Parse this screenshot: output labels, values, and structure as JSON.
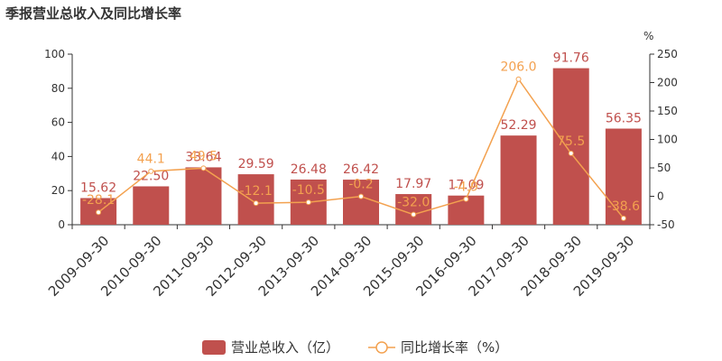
{
  "chart_data": {
    "type": "bar",
    "title": "季报营业总收入及同比增长率",
    "categories": [
      "2009-09-30",
      "2010-09-30",
      "2011-09-30",
      "2012-09-30",
      "2013-09-30",
      "2014-09-30",
      "2015-09-30",
      "2016-09-30",
      "2017-09-30",
      "2018-09-30",
      "2019-09-30"
    ],
    "series": [
      {
        "name": "营业总收入（亿）",
        "type": "bar",
        "axis": "left",
        "values": [
          15.62,
          22.5,
          33.64,
          29.59,
          26.48,
          26.42,
          17.97,
          17.09,
          52.29,
          91.76,
          56.35
        ],
        "labels": [
          "15.62",
          "22.50",
          "33.64",
          "29.59",
          "26.48",
          "26.42",
          "17.97",
          "17.09",
          "52.29",
          "91.76",
          "56.35"
        ]
      },
      {
        "name": "同比增长率（%）",
        "type": "line",
        "axis": "right",
        "values": [
          -28.1,
          44.1,
          49.5,
          -12.1,
          -10.5,
          -0.2,
          -32.0,
          -4.9,
          206.0,
          75.5,
          -38.6
        ],
        "labels": [
          "-28.1",
          "44.1",
          "49.5",
          "-12.1",
          "-10.5",
          "-0.2",
          "-32.0",
          "-4.9",
          "206.0",
          "75.5",
          "-38.6"
        ]
      }
    ],
    "ylim": [
      0,
      100
    ],
    "yticks": [
      0,
      20,
      40,
      60,
      80,
      100
    ],
    "y2lim": [
      -50,
      250
    ],
    "y2ticks": [
      -50,
      0,
      50,
      100,
      150,
      200,
      250
    ],
    "y2unit": "%",
    "grid": false,
    "legend_position": "bottom-center",
    "colors": {
      "bar": "#c0504d",
      "line": "#f3a14f",
      "axis": "#333333"
    }
  }
}
